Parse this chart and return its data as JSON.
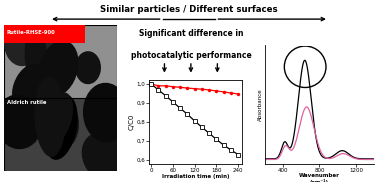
{
  "title_text": "Similar particles / Different surfaces",
  "center_text1": "Significant difference in",
  "center_text2": "photocatalytic performance",
  "label_top": "Rutile-RHSE-900",
  "label_bottom": "Aldrich rutile",
  "xlabel_plot": "Irradiation time (min)",
  "ylabel_plot": "C/C0",
  "ylabel_ir": "Absorbance",
  "x_plot": [
    0,
    20,
    40,
    60,
    80,
    100,
    120,
    140,
    160,
    180,
    200,
    220,
    240
  ],
  "y_red": [
    1.0,
    0.99,
    0.99,
    0.985,
    0.982,
    0.978,
    0.975,
    0.972,
    0.968,
    0.963,
    0.958,
    0.952,
    0.947
  ],
  "y_black": [
    1.0,
    0.968,
    0.938,
    0.905,
    0.872,
    0.84,
    0.805,
    0.772,
    0.74,
    0.708,
    0.678,
    0.652,
    0.628
  ],
  "ylim_plot": [
    0.58,
    1.02
  ],
  "xlim_plot": [
    -5,
    250
  ],
  "yticks_plot": [
    0.6,
    0.7,
    0.8,
    0.9,
    1.0
  ],
  "ytick_labels": [
    "0,6",
    "0,7",
    "0,8",
    "0,9",
    "1,0"
  ],
  "xticks_plot": [
    0,
    60,
    120,
    180,
    240
  ],
  "bg_color": "#ffffff",
  "red_color": "#ff0000",
  "black_color": "#000000",
  "pink_color": "#e060a0"
}
